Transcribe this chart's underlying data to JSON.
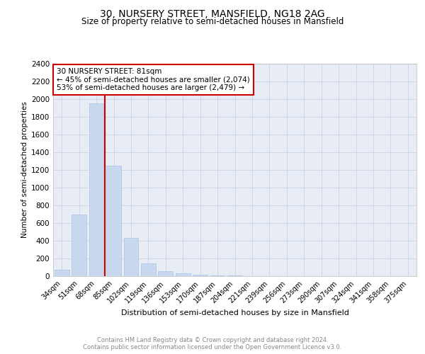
{
  "title1": "30, NURSERY STREET, MANSFIELD, NG18 2AG",
  "title2": "Size of property relative to semi-detached houses in Mansfield",
  "xlabel": "Distribution of semi-detached houses by size in Mansfield",
  "ylabel": "Number of semi-detached properties",
  "categories": [
    "34sqm",
    "51sqm",
    "68sqm",
    "85sqm",
    "102sqm",
    "119sqm",
    "136sqm",
    "153sqm",
    "170sqm",
    "187sqm",
    "204sqm",
    "221sqm",
    "239sqm",
    "256sqm",
    "273sqm",
    "290sqm",
    "307sqm",
    "324sqm",
    "341sqm",
    "358sqm",
    "375sqm"
  ],
  "values": [
    70,
    700,
    1950,
    1250,
    430,
    145,
    60,
    35,
    20,
    10,
    5,
    0,
    0,
    0,
    0,
    0,
    0,
    0,
    0,
    0,
    0
  ],
  "bar_color": "#c8d9ef",
  "bar_edge_color": "#aac4e0",
  "grid_color": "#ccd5e5",
  "annotation_text": "30 NURSERY STREET: 81sqm\n← 45% of semi-detached houses are smaller (2,074)\n53% of semi-detached houses are larger (2,479) →",
  "red_box_color": "#cc0000",
  "ylim": [
    0,
    2400
  ],
  "yticks": [
    0,
    200,
    400,
    600,
    800,
    1000,
    1200,
    1400,
    1600,
    1800,
    2000,
    2200,
    2400
  ],
  "footnote": "Contains HM Land Registry data © Crown copyright and database right 2024.\nContains public sector information licensed under the Open Government Licence v3.0.",
  "bg_color": "#ffffff",
  "plot_bg_color": "#e8edf5"
}
